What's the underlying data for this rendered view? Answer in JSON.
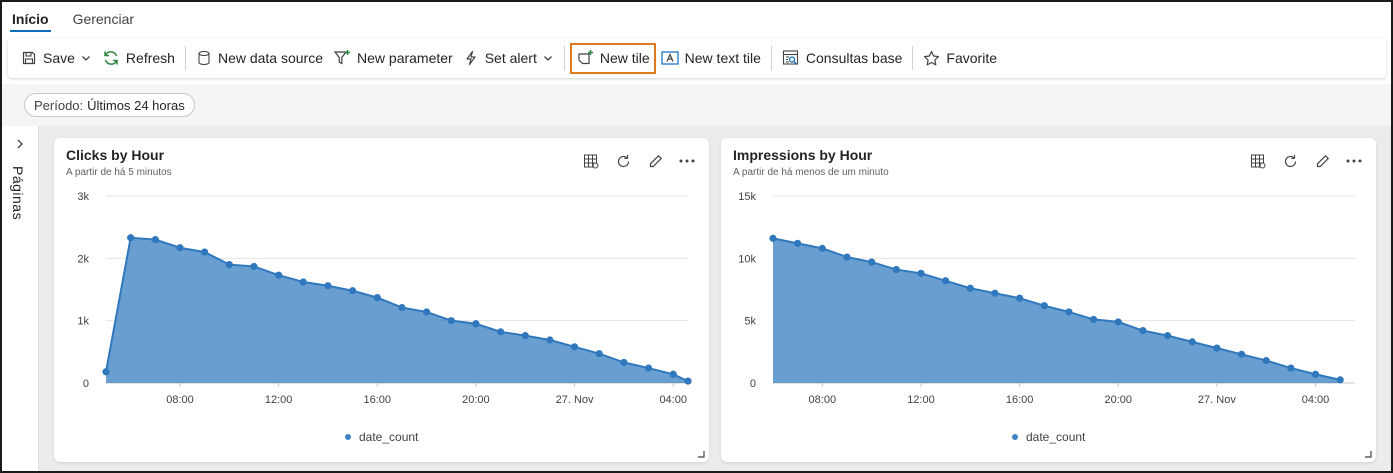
{
  "tabs": [
    {
      "label": "Início",
      "active": true
    },
    {
      "label": "Gerenciar",
      "active": false
    }
  ],
  "toolbar": {
    "save": "Save",
    "refresh": "Refresh",
    "new_data_source": "New data source",
    "new_parameter": "New parameter",
    "set_alert": "Set alert",
    "new_tile": "New tile",
    "new_text_tile": "New text tile",
    "consultas_base": "Consultas base",
    "favorite": "Favorite"
  },
  "filter": {
    "label": "Período:",
    "value": "Últimos 24 horas"
  },
  "pages_label": "Páginas",
  "colors": {
    "accent": "#0f6cbd",
    "highlight": "#e07a1f",
    "series": "#3f84c3"
  },
  "chart_data": [
    {
      "type": "area",
      "title": "Clicks by Hour",
      "subtitle": "A partir de há 5 minutos",
      "series": [
        {
          "name": "date_count",
          "values": [
            180,
            2330,
            2300,
            2170,
            2100,
            1900,
            1870,
            1730,
            1620,
            1560,
            1480,
            1370,
            1210,
            1140,
            1000,
            950,
            820,
            760,
            690,
            580,
            470,
            330,
            240,
            140,
            30
          ]
        }
      ],
      "x_hours_from_first": [
        0,
        1,
        2,
        3,
        4,
        5,
        6,
        7,
        8,
        9,
        10,
        11,
        12,
        13,
        14,
        15,
        16,
        17,
        18,
        19,
        20,
        21,
        22,
        23,
        23.6
      ],
      "x_tick_labels": [
        {
          "label": "08:00",
          "hour": 3
        },
        {
          "label": "12:00",
          "hour": 7
        },
        {
          "label": "16:00",
          "hour": 11
        },
        {
          "label": "20:00",
          "hour": 15
        },
        {
          "label": "27. Nov",
          "hour": 19
        },
        {
          "label": "04:00",
          "hour": 23
        }
      ],
      "y_ticks": [
        0,
        1000,
        2000,
        3000
      ],
      "y_tick_labels": [
        "0",
        "1k",
        "2k",
        "3k"
      ],
      "ylim": [
        0,
        3000
      ],
      "legend": "date_count"
    },
    {
      "type": "area",
      "title": "Impressions by Hour",
      "subtitle": "A partir de há menos de um minuto",
      "series": [
        {
          "name": "date_count",
          "values": [
            11600,
            11200,
            10800,
            10100,
            9700,
            9100,
            8800,
            8200,
            7600,
            7200,
            6800,
            6200,
            5700,
            5100,
            4900,
            4200,
            3800,
            3300,
            2800,
            2300,
            1800,
            1200,
            700,
            250
          ]
        }
      ],
      "x_hours_from_first": [
        0,
        1,
        2,
        3,
        4,
        5,
        6,
        7,
        8,
        9,
        10,
        11,
        12,
        13,
        14,
        15,
        16,
        17,
        18,
        19,
        20,
        21,
        22,
        23
      ],
      "x_tick_labels": [
        {
          "label": "08:00",
          "hour": 2
        },
        {
          "label": "12:00",
          "hour": 6
        },
        {
          "label": "16:00",
          "hour": 10
        },
        {
          "label": "20:00",
          "hour": 14
        },
        {
          "label": "27. Nov",
          "hour": 18
        },
        {
          "label": "04:00",
          "hour": 22
        }
      ],
      "y_ticks": [
        0,
        5000,
        10000,
        15000
      ],
      "y_tick_labels": [
        "0",
        "5k",
        "10k",
        "15k"
      ],
      "ylim": [
        0,
        15000
      ],
      "legend": "date_count"
    }
  ]
}
